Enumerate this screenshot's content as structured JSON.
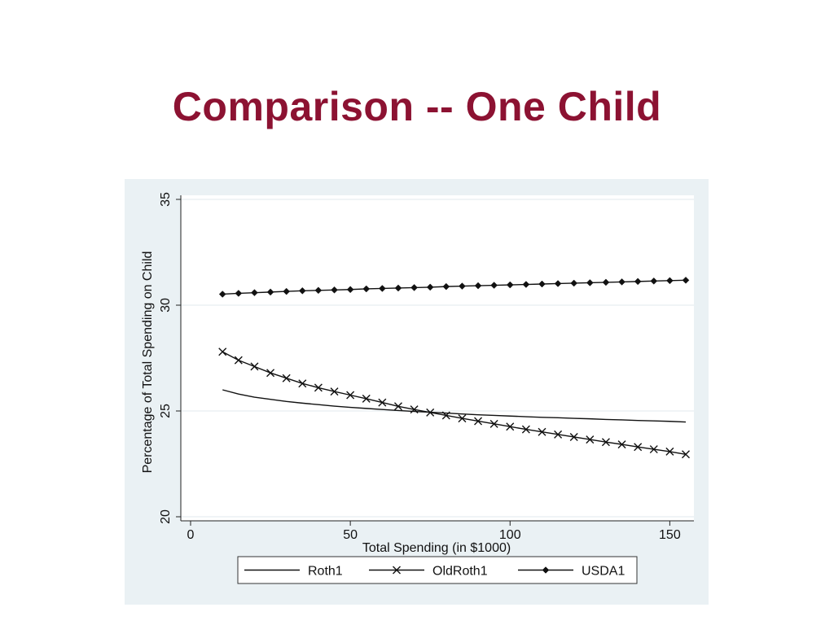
{
  "slide": {
    "title": "Comparison -- One Child"
  },
  "colors": {
    "title": "#8c1232",
    "chart_background": "#eaf1f4",
    "plot_background": "#ffffff",
    "gridline": "#e8eef1",
    "series": "#111111"
  },
  "chart_data": {
    "type": "line",
    "xlabel": "Total Spending (in $1000)",
    "ylabel": "Percentage of Total Spending on Child",
    "xlim": [
      0,
      155
    ],
    "ylim": [
      20,
      35
    ],
    "xticks": [
      0,
      50,
      100,
      150
    ],
    "yticks": [
      20,
      25,
      30,
      35
    ],
    "grid": true,
    "legend_position": "bottom",
    "series": [
      {
        "name": "Roth1",
        "marker": "none",
        "x": [
          10,
          15,
          20,
          25,
          30,
          35,
          40,
          45,
          50,
          55,
          60,
          65,
          70,
          75,
          80,
          85,
          90,
          95,
          100,
          105,
          110,
          115,
          120,
          125,
          130,
          135,
          140,
          145,
          150,
          155
        ],
        "values": [
          26.0,
          25.8,
          25.65,
          25.55,
          25.45,
          25.37,
          25.3,
          25.23,
          25.17,
          25.12,
          25.07,
          25.02,
          24.98,
          24.94,
          24.9,
          24.86,
          24.82,
          24.79,
          24.76,
          24.73,
          24.7,
          24.68,
          24.65,
          24.63,
          24.6,
          24.58,
          24.55,
          24.53,
          24.51,
          24.48
        ]
      },
      {
        "name": "OldRoth1",
        "marker": "x",
        "x": [
          10,
          15,
          20,
          25,
          30,
          35,
          40,
          45,
          50,
          55,
          60,
          65,
          70,
          75,
          80,
          85,
          90,
          95,
          100,
          105,
          110,
          115,
          120,
          125,
          130,
          135,
          140,
          145,
          150,
          155
        ],
        "values": [
          27.8,
          27.4,
          27.1,
          26.8,
          26.55,
          26.3,
          26.1,
          25.92,
          25.75,
          25.58,
          25.4,
          25.22,
          25.07,
          24.93,
          24.79,
          24.65,
          24.52,
          24.39,
          24.26,
          24.13,
          24.01,
          23.89,
          23.77,
          23.65,
          23.53,
          23.42,
          23.3,
          23.19,
          23.08,
          22.95
        ]
      },
      {
        "name": "USDA1",
        "marker": "diamond",
        "x": [
          10,
          15,
          20,
          25,
          30,
          35,
          40,
          45,
          50,
          55,
          60,
          65,
          70,
          75,
          80,
          85,
          90,
          95,
          100,
          105,
          110,
          115,
          120,
          125,
          130,
          135,
          140,
          145,
          150,
          155
        ],
        "values": [
          30.52,
          30.56,
          30.59,
          30.62,
          30.65,
          30.68,
          30.7,
          30.72,
          30.74,
          30.77,
          30.79,
          30.81,
          30.83,
          30.85,
          30.88,
          30.9,
          30.92,
          30.94,
          30.96,
          30.98,
          31.0,
          31.02,
          31.04,
          31.06,
          31.08,
          31.1,
          31.12,
          31.14,
          31.16,
          31.18
        ]
      }
    ]
  }
}
